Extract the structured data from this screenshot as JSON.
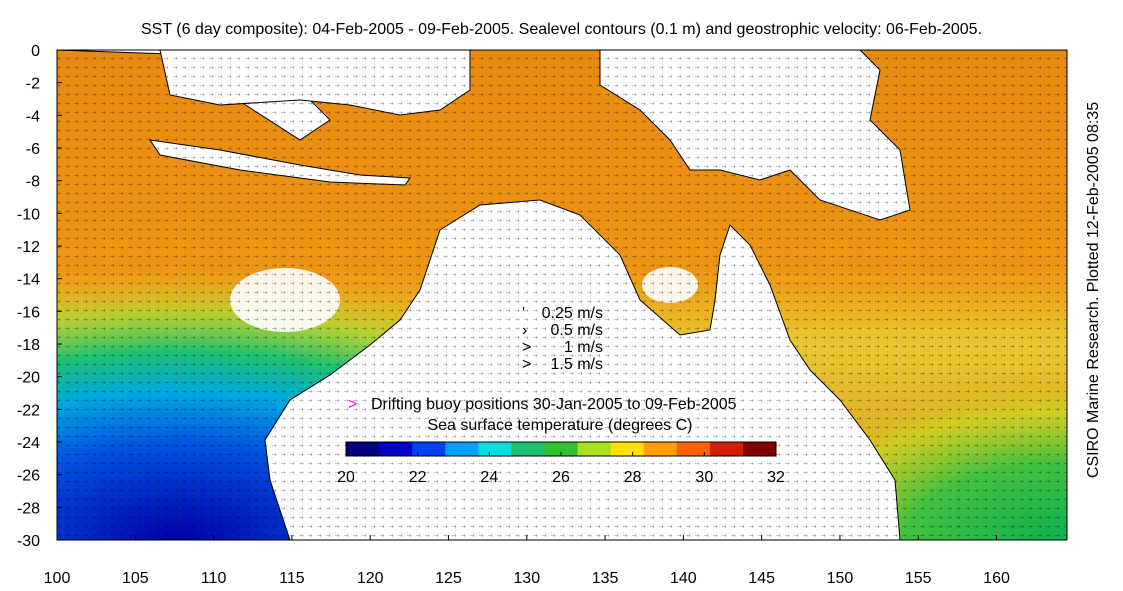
{
  "title": "SST (6 day composite): 04-Feb-2005 - 09-Feb-2005. Sealevel contours (0.1 m) and geostrophic velocity: 06-Feb-2005.",
  "side_label": "CSIRO Marine Research. Plotted 12-Feb-2005 08:35",
  "axes": {
    "x_ticks": [
      "100",
      "105",
      "110",
      "115",
      "120",
      "125",
      "130",
      "135",
      "140",
      "145",
      "150",
      "155",
      "160"
    ],
    "y_ticks": [
      "0",
      "-2",
      "-4",
      "-6",
      "-8",
      "-10",
      "-12",
      "-14",
      "-16",
      "-18",
      "-20",
      "-22",
      "-24",
      "-26",
      "-28",
      "-30"
    ],
    "x_range": [
      100,
      164.5
    ],
    "y_range": [
      -30,
      0
    ]
  },
  "velocity_legend": [
    {
      "label": "0.25 m/s",
      "symbol": "'"
    },
    {
      "label": "0.5 m/s",
      "symbol": "›"
    },
    {
      "label": "1 m/s",
      "symbol": ">"
    },
    {
      "label": "1.5 m/s",
      "symbol": ">"
    }
  ],
  "buoy_legend": {
    "label": "Drifting buoy positions 30-Jan-2005 to 09-Feb-2005",
    "symbol": ">",
    "color": "#ff00ff"
  },
  "colorbar": {
    "title": "Sea surface temperature (degrees C)",
    "ticks": [
      "20",
      "22",
      "24",
      "26",
      "28",
      "30",
      "32"
    ],
    "range": [
      20,
      32
    ],
    "colors": [
      "#00007f",
      "#0000c8",
      "#0040ff",
      "#00a0ff",
      "#00e0e0",
      "#20c070",
      "#30c030",
      "#a8e020",
      "#ffe000",
      "#ffa000",
      "#ff6000",
      "#d02000",
      "#800000"
    ]
  },
  "colors": {
    "land": "#ffffff",
    "coast": "#000000",
    "contour": "#ffffff"
  }
}
